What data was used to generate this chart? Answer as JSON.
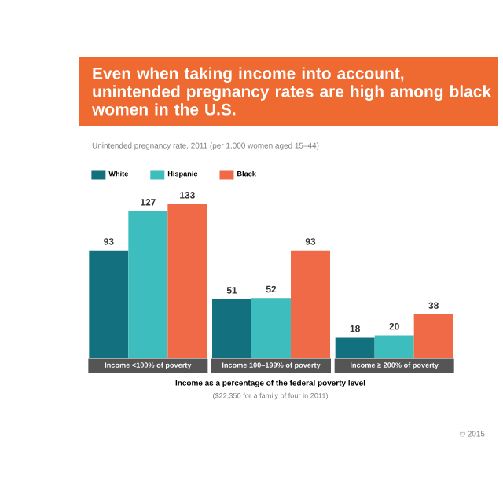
{
  "chart_data": {
    "type": "bar",
    "title": "Even when taking income into account, unintended pregnancy rates are high among black women in the U.S.",
    "subtitle": "Unintended pregnancy rate, 2011 (per 1,000 women aged 15–44)",
    "categories": [
      "Income <100% of poverty",
      "Income 100–199% of poverty",
      "Income ≥ 200% of poverty"
    ],
    "series": [
      {
        "name": "White",
        "color": "#12707f",
        "values": [
          93,
          51,
          18
        ]
      },
      {
        "name": "Hispanic",
        "color": "#3dbdbd",
        "values": [
          127,
          52,
          20
        ]
      },
      {
        "name": "Black",
        "color": "#f06a47",
        "values": [
          133,
          93,
          38
        ]
      }
    ],
    "xlabel": "Income as a percentage of the federal poverty level",
    "annotations": [
      "($22,350 for a family of four in 2011)",
      "© 2015"
    ],
    "data_labels": true,
    "legend": "top left"
  }
}
